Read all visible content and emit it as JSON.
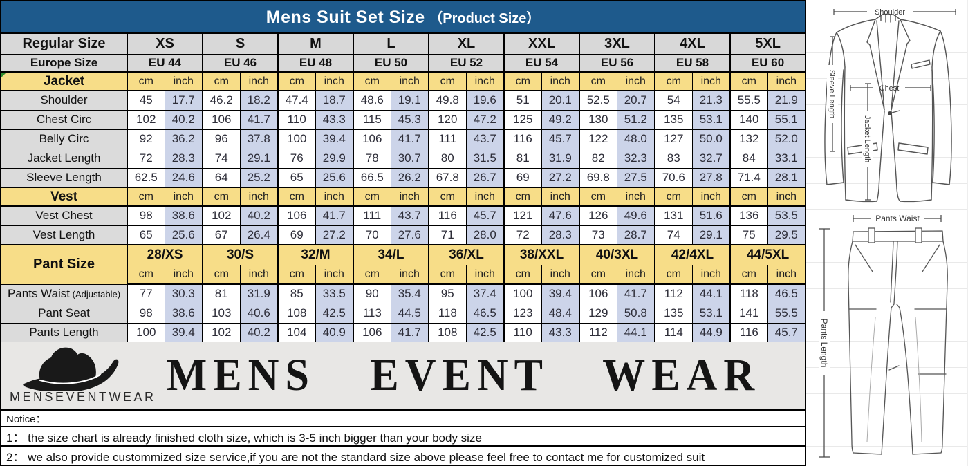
{
  "title_main": "Mens Suit Set Size",
  "title_paren": "（Product Size）",
  "table": {
    "regular_size_label": "Regular Size",
    "europe_size_label": "Europe Size",
    "regular_sizes": [
      "XS",
      "S",
      "M",
      "L",
      "XL",
      "XXL",
      "3XL",
      "4XL",
      "5XL"
    ],
    "europe_sizes": [
      "EU 44",
      "EU 46",
      "EU 48",
      "EU 50",
      "EU 52",
      "EU 54",
      "EU 56",
      "EU 58",
      "EU 60"
    ],
    "unit_cm": "cm",
    "unit_inch": "inch",
    "sections": [
      {
        "label": "Jacket",
        "marker": true,
        "rows": [
          {
            "label": "Shoulder",
            "cm": [
              "45",
              "46.2",
              "47.4",
              "48.6",
              "49.8",
              "51",
              "52.5",
              "54",
              "55.5"
            ],
            "inch": [
              "17.7",
              "18.2",
              "18.7",
              "19.1",
              "19.6",
              "20.1",
              "20.7",
              "21.3",
              "21.9"
            ]
          },
          {
            "label": "Chest Circ",
            "cm": [
              "102",
              "106",
              "110",
              "115",
              "120",
              "125",
              "130",
              "135",
              "140"
            ],
            "inch": [
              "40.2",
              "41.7",
              "43.3",
              "45.3",
              "47.2",
              "49.2",
              "51.2",
              "53.1",
              "55.1"
            ]
          },
          {
            "label": "Belly Circ",
            "cm": [
              "92",
              "96",
              "100",
              "106",
              "111",
              "116",
              "122",
              "127",
              "132"
            ],
            "inch": [
              "36.2",
              "37.8",
              "39.4",
              "41.7",
              "43.7",
              "45.7",
              "48.0",
              "50.0",
              "52.0"
            ]
          },
          {
            "label": "Jacket Length",
            "cm": [
              "72",
              "74",
              "76",
              "78",
              "80",
              "81",
              "82",
              "83",
              "84"
            ],
            "inch": [
              "28.3",
              "29.1",
              "29.9",
              "30.7",
              "31.5",
              "31.9",
              "32.3",
              "32.7",
              "33.1"
            ]
          },
          {
            "label": "Sleeve Length",
            "cm": [
              "62.5",
              "64",
              "65",
              "66.5",
              "67.8",
              "69",
              "69.8",
              "70.6",
              "71.4"
            ],
            "inch": [
              "24.6",
              "25.2",
              "25.6",
              "26.2",
              "26.7",
              "27.2",
              "27.5",
              "27.8",
              "28.1"
            ]
          }
        ]
      },
      {
        "label": "Vest",
        "marker": false,
        "rows": [
          {
            "label": "Vest Chest",
            "cm": [
              "98",
              "102",
              "106",
              "111",
              "116",
              "121",
              "126",
              "131",
              "136"
            ],
            "inch": [
              "38.6",
              "40.2",
              "41.7",
              "43.7",
              "45.7",
              "47.6",
              "49.6",
              "51.6",
              "53.5"
            ]
          },
          {
            "label": "Vest Length",
            "cm": [
              "65",
              "67",
              "69",
              "70",
              "71",
              "72",
              "73",
              "74",
              "75"
            ],
            "inch": [
              "25.6",
              "26.4",
              "27.2",
              "27.6",
              "28.0",
              "28.3",
              "28.7",
              "29.1",
              "29.5"
            ]
          }
        ]
      }
    ],
    "pant": {
      "label": "Pant Size",
      "sizes": [
        "28/XS",
        "30/S",
        "32/M",
        "34/L",
        "36/XL",
        "38/XXL",
        "40/3XL",
        "42/4XL",
        "44/5XL"
      ],
      "rows": [
        {
          "label": "Pants Waist",
          "label_suffix": "(Adjustable)",
          "cm": [
            "77",
            "81",
            "85",
            "90",
            "95",
            "100",
            "106",
            "112",
            "118"
          ],
          "inch": [
            "30.3",
            "31.9",
            "33.5",
            "35.4",
            "37.4",
            "39.4",
            "41.7",
            "44.1",
            "46.5"
          ]
        },
        {
          "label": "Pant Seat",
          "label_suffix": "",
          "cm": [
            "98",
            "103",
            "108",
            "113",
            "118",
            "123",
            "129",
            "135",
            "141"
          ],
          "inch": [
            "38.6",
            "40.6",
            "42.5",
            "44.5",
            "46.5",
            "48.4",
            "50.8",
            "53.1",
            "55.5"
          ]
        },
        {
          "label": "Pants Length",
          "label_suffix": "",
          "cm": [
            "100",
            "102",
            "104",
            "106",
            "108",
            "110",
            "112",
            "114",
            "116"
          ],
          "inch": [
            "39.4",
            "40.2",
            "40.9",
            "41.7",
            "42.5",
            "43.3",
            "44.1",
            "44.9",
            "45.7"
          ]
        }
      ]
    }
  },
  "logo": {
    "brand_small": "MENSEVENTWEAR",
    "wordmark": "MENS EVENT WEAR",
    "hat_icon": "fedora-hat-icon"
  },
  "notice": {
    "heading": "Notice：",
    "line1": "1：  the size chart is already finished cloth size, which is 3-5 inch bigger than your body size",
    "line2": "2：  we also provide custommized size service,if you are not the standard size above please feel free to contact me for customized suit"
  },
  "diagram": {
    "jacket": {
      "shoulder": "Shoulder",
      "chest": "Chest",
      "jacket_length": "Jacket Length",
      "sleeve_length": "Sleeve Length"
    },
    "pants": {
      "waist": "Pants Waist",
      "length": "Pants Length"
    }
  },
  "colors": {
    "header_blue": "#1e5a8c",
    "section_yellow": "#f7dd88",
    "inch_cell_blue": "#ccd4e9",
    "header_gray": "#d8d8d8",
    "logo_band_gray": "#e8e7e5"
  }
}
